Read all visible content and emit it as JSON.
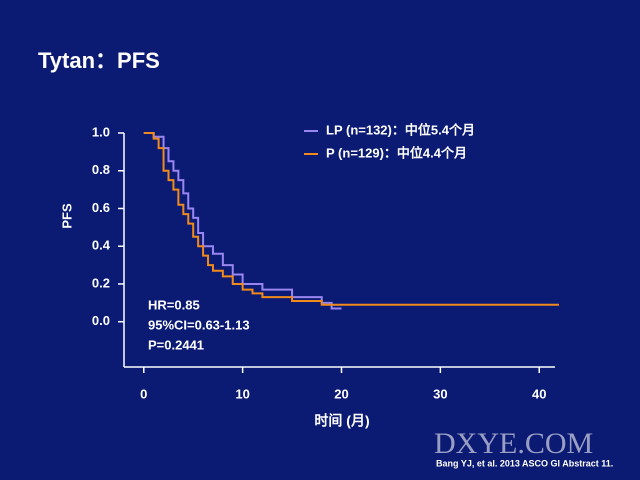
{
  "chart_data": {
    "type": "step",
    "title": "Tytan：PFS",
    "x_label": "时间 (月)",
    "y_label": "PFS",
    "annotations": [
      "HR=0.85",
      "95%CI=0.63-1.13",
      "P=0.2441"
    ],
    "citation": "Bang YJ, et al.  2013 ASCO GI Abstract 11.",
    "watermark": "DXYE.COM",
    "xlim": [
      -2,
      42
    ],
    "ylim": [
      -0.24,
      1.0
    ],
    "xticks": [
      0,
      10,
      20,
      30,
      40
    ],
    "yticks": [
      {
        "value": 0,
        "label": "0.0"
      },
      0.2,
      0.4,
      0.6,
      0.8,
      {
        "value": 1,
        "label": "1.0"
      }
    ],
    "series": [
      {
        "name": "LP (n=132)：中位5.4个月",
        "color": "#9a86f0",
        "x": [
          0,
          1,
          2,
          2.5,
          3,
          3.5,
          4,
          4.5,
          5,
          5.5,
          6,
          7,
          8,
          9,
          10,
          12,
          15,
          18,
          19,
          20
        ],
        "values": [
          1.0,
          0.98,
          0.92,
          0.85,
          0.8,
          0.75,
          0.68,
          0.6,
          0.55,
          0.47,
          0.4,
          0.36,
          0.3,
          0.25,
          0.2,
          0.17,
          0.13,
          0.1,
          0.07,
          0.07
        ]
      },
      {
        "name": "P (n=129)：中位4.4个月",
        "color": "#f08a1c",
        "x": [
          0,
          1,
          1.5,
          2,
          2.5,
          3,
          3.5,
          4,
          4.5,
          5,
          5.5,
          6,
          6.5,
          7,
          8,
          9,
          10,
          11,
          12,
          15,
          18,
          42
        ],
        "values": [
          1.0,
          0.97,
          0.92,
          0.8,
          0.75,
          0.7,
          0.62,
          0.57,
          0.52,
          0.45,
          0.4,
          0.35,
          0.3,
          0.27,
          0.24,
          0.2,
          0.17,
          0.15,
          0.13,
          0.11,
          0.09,
          0.09
        ]
      }
    ]
  }
}
